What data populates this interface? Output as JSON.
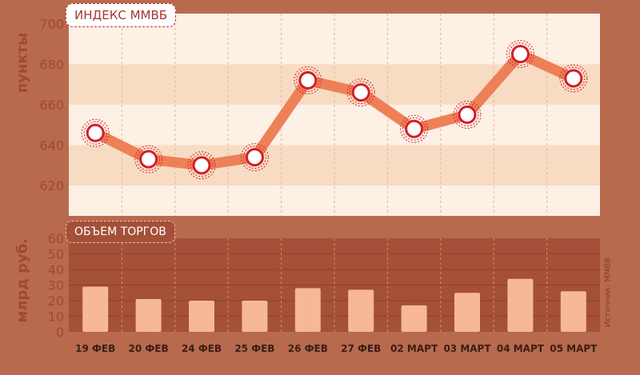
{
  "chart_data": [
    {
      "type": "line",
      "title": "ИНДЕКС ММВБ",
      "ylabel": "пункты",
      "categories": [
        "19 ФЕВ",
        "20 ФЕВ",
        "24 ФЕВ",
        "25 ФЕВ",
        "26 ФЕВ",
        "27 ФЕВ",
        "02 МАРТ",
        "03 МАРТ",
        "04 МАРТ",
        "05 МАРТ"
      ],
      "values": [
        646,
        633,
        630,
        634,
        672,
        666,
        648,
        655,
        685,
        673
      ],
      "yticks": [
        620,
        640,
        660,
        680,
        700
      ],
      "ylim": [
        605,
        705
      ],
      "grid": true
    },
    {
      "type": "bar",
      "title": "ОБЪЕМ ТОРГОВ",
      "ylabel": "млрд руб.",
      "categories": [
        "19 ФЕВ",
        "20 ФЕВ",
        "24 ФЕВ",
        "25 ФЕВ",
        "26 ФЕВ",
        "27 ФЕВ",
        "02 МАРТ",
        "03 МАРТ",
        "04 МАРТ",
        "05 МАРТ"
      ],
      "values": [
        29,
        21,
        20,
        20,
        28,
        27,
        17,
        25,
        34,
        26
      ],
      "yticks": [
        0,
        10,
        20,
        30,
        40,
        50,
        60
      ],
      "ylim": [
        0,
        60
      ],
      "grid": true
    }
  ],
  "source": "Источник: ММВБ",
  "colors": {
    "frame": "#b86a4e",
    "band_dark": "#f7dcc3",
    "band_light": "#fdf0e5",
    "line": "#ee8058",
    "marker_ring": "#d0202a",
    "vol_bg": "#a55039",
    "bar": "#f6b896",
    "axis_text": "#a24732"
  }
}
